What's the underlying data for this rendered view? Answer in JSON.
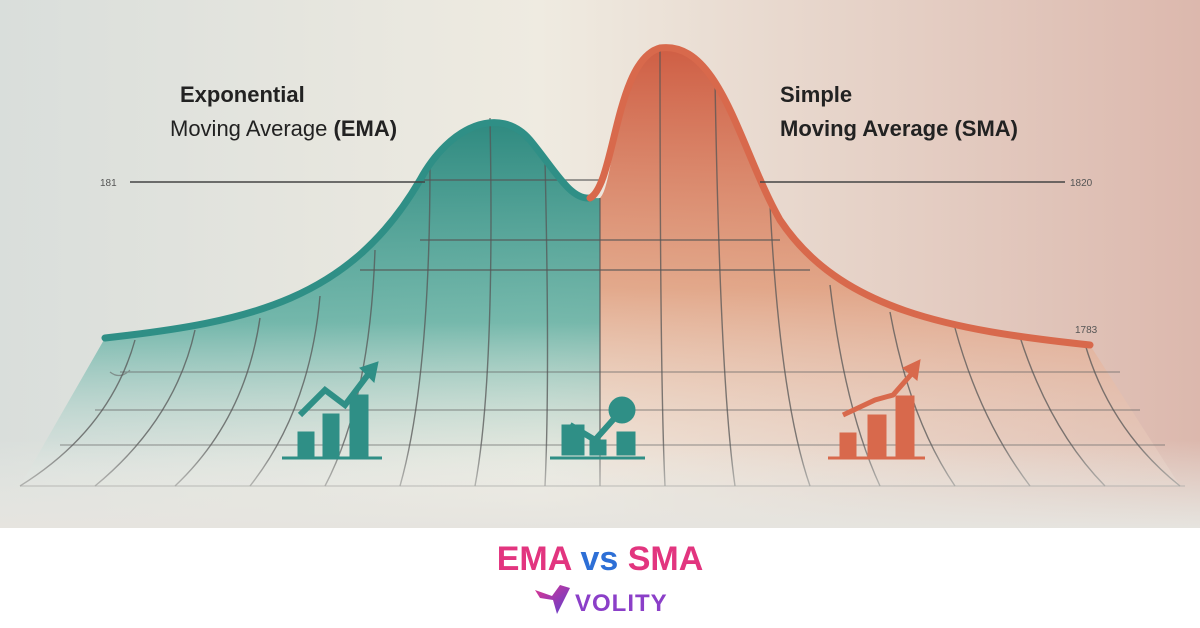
{
  "illustration": {
    "left_label": {
      "line1": "Exponential",
      "line2": "Moving Average",
      "abbr": "(EMA)"
    },
    "right_label": {
      "line1": "Simple",
      "line2": "Moving Average",
      "abbr": "(SMA)"
    },
    "axis_marks": [
      "181",
      "1820",
      "1783"
    ]
  },
  "caption": {
    "left": "EMA",
    "middle": "vs",
    "right": "SMA"
  },
  "brand": "VOLITY"
}
